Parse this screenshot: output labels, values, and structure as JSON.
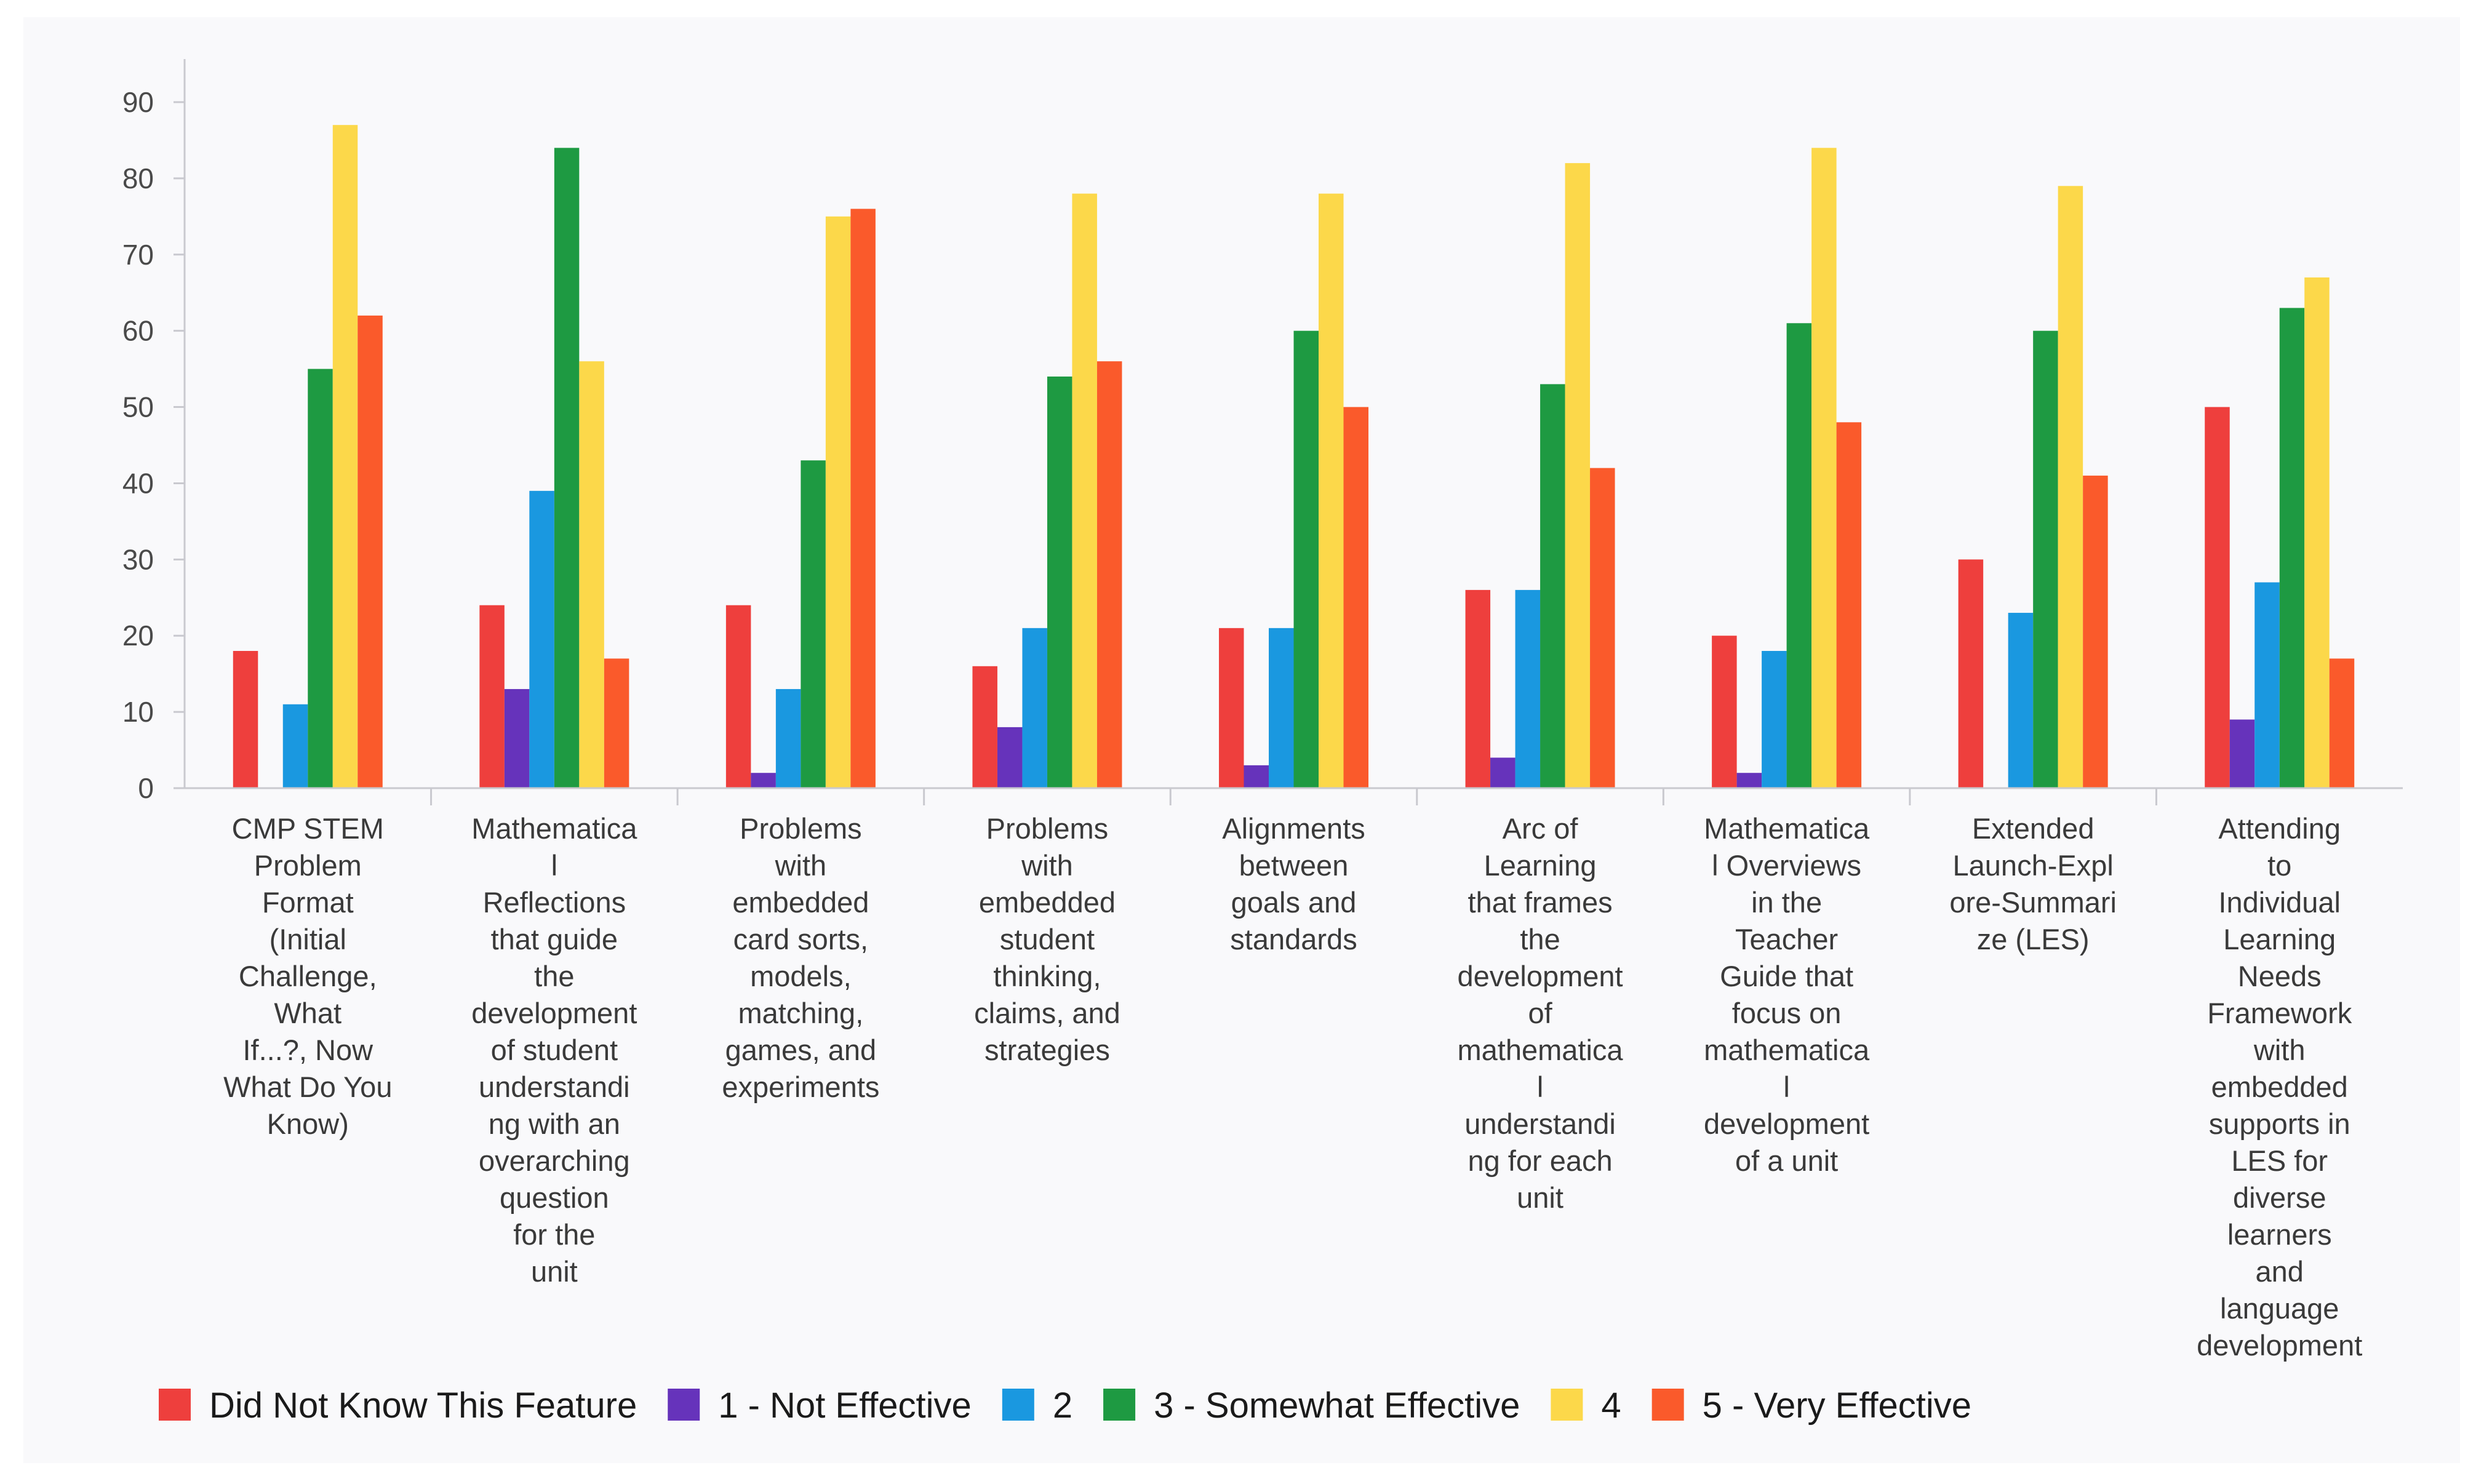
{
  "chart_data": {
    "type": "bar",
    "title": "",
    "xlabel": "",
    "ylabel": "",
    "ylim": [
      0,
      90
    ],
    "yticks": [
      0,
      10,
      20,
      30,
      40,
      50,
      60,
      70,
      80,
      90
    ],
    "grid": false,
    "legend_position": "bottom",
    "categories": [
      [
        "CMP STEM",
        "Problem",
        "Format",
        "(Initial",
        "Challenge,",
        "What",
        "If...?, Now",
        "What Do You",
        "Know)"
      ],
      [
        "Mathematica",
        "l",
        "Reflections",
        "that guide",
        "the",
        "development",
        "of student",
        "understandi",
        "ng with an",
        "overarching",
        "question",
        "for the",
        "unit"
      ],
      [
        "Problems",
        "with",
        "embedded",
        "card sorts,",
        "models,",
        "matching,",
        "games, and",
        "experiments"
      ],
      [
        "Problems",
        "with",
        "embedded",
        "student",
        "thinking,",
        "claims, and",
        "strategies"
      ],
      [
        "Alignments",
        "between",
        "goals and",
        "standards"
      ],
      [
        "Arc of",
        "Learning",
        "that frames",
        "the",
        "development",
        "of",
        "mathematica",
        "l",
        "understandi",
        "ng for each",
        "unit"
      ],
      [
        "Mathematica",
        "l Overviews",
        "in the",
        "Teacher",
        "Guide that",
        "focus on",
        "mathematica",
        "l",
        "development",
        "of a unit"
      ],
      [
        "Extended",
        "Launch-Expl",
        "ore-Summari",
        "ze (LES)"
      ],
      [
        "Attending",
        "to",
        "Individual",
        "Learning",
        "Needs",
        "Framework",
        "with",
        "embedded",
        "supports in",
        "LES for",
        "diverse",
        "learners",
        "and",
        "language",
        "development"
      ]
    ],
    "series": [
      {
        "name": "Did Not Know This Feature",
        "color": "#ee3f3d",
        "values": [
          18,
          24,
          24,
          16,
          21,
          26,
          20,
          30,
          50
        ]
      },
      {
        "name": "1 - Not Effective",
        "color": "#6633bb",
        "values": [
          0,
          13,
          2,
          8,
          3,
          4,
          2,
          0,
          9
        ]
      },
      {
        "name": "2",
        "color": "#1a98e0",
        "values": [
          11,
          39,
          13,
          21,
          21,
          26,
          18,
          23,
          27
        ]
      },
      {
        "name": "3 - Somewhat Effective",
        "color": "#1e9a42",
        "values": [
          55,
          84,
          43,
          54,
          60,
          53,
          61,
          60,
          63
        ]
      },
      {
        "name": "4",
        "color": "#fcd84a",
        "values": [
          87,
          56,
          75,
          78,
          78,
          82,
          84,
          79,
          67
        ]
      },
      {
        "name": "5 - Very Effective",
        "color": "#fa5a2b",
        "values": [
          62,
          17,
          76,
          56,
          50,
          42,
          48,
          41,
          17
        ]
      }
    ]
  }
}
